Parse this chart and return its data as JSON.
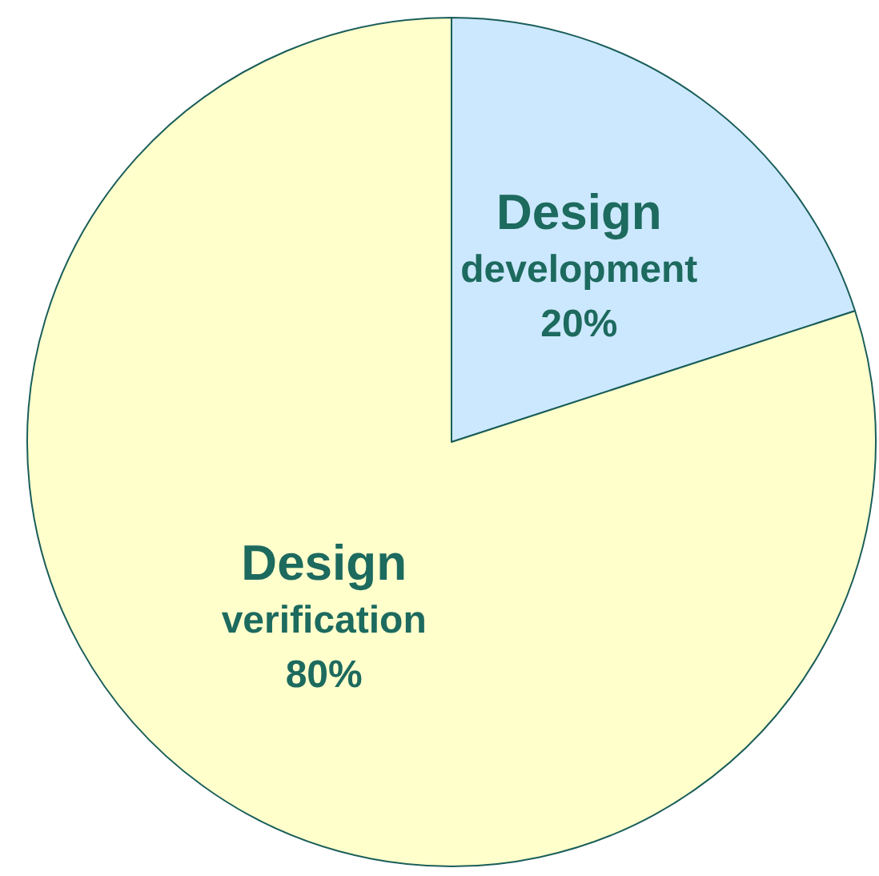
{
  "chart_data": {
    "type": "pie",
    "categories": [
      "Design development",
      "Design verification"
    ],
    "values": [
      20,
      80
    ],
    "colors": [
      "#cce8ff",
      "#ffffcc"
    ],
    "value_labels": [
      "20%",
      "80%"
    ],
    "legend": false
  }
}
